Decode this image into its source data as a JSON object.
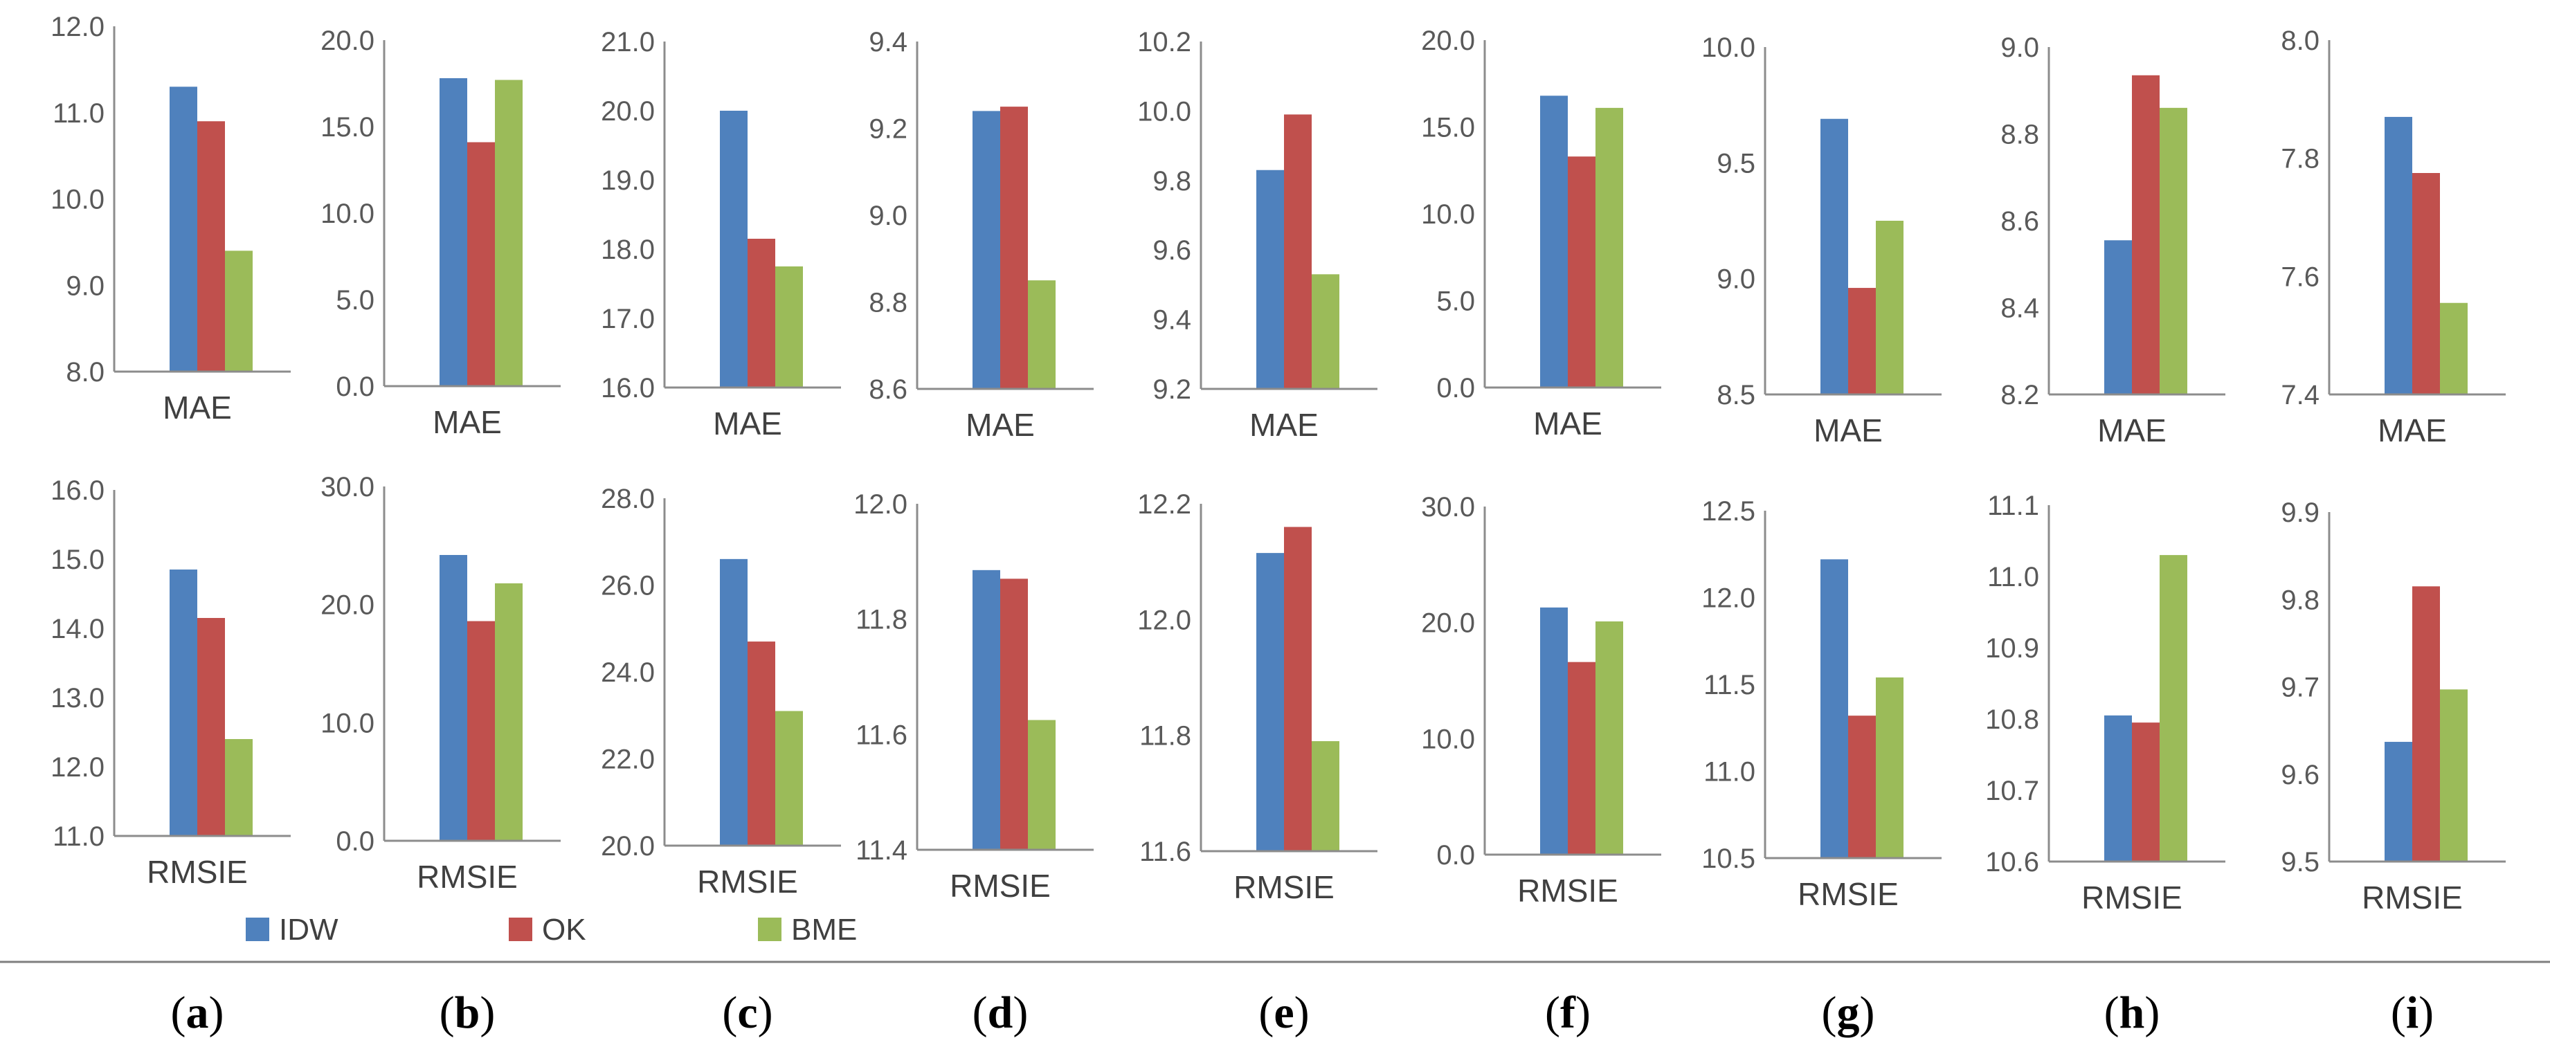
{
  "chart_data": {
    "type": "bar",
    "series_names": [
      "IDW",
      "OK",
      "BME"
    ],
    "colors": {
      "IDW": "#4f81bd",
      "OK": "#c0504d",
      "BME": "#9bbb59"
    },
    "panels": [
      {
        "label": "a",
        "mae": {
          "category": "MAE",
          "values": [
            11.3,
            10.9,
            9.4
          ],
          "ylim": [
            8.0,
            12.0
          ],
          "ticks": [
            "8.0",
            "9.0",
            "10.0",
            "11.0",
            "12.0"
          ]
        },
        "rmsie": {
          "category": "RMSIE",
          "values": [
            14.85,
            14.15,
            12.4
          ],
          "ylim": [
            11.0,
            16.0
          ],
          "ticks": [
            "11.0",
            "12.0",
            "13.0",
            "14.0",
            "15.0",
            "16.0"
          ]
        }
      },
      {
        "label": "b",
        "mae": {
          "category": "MAE",
          "values": [
            17.8,
            14.1,
            17.7
          ],
          "ylim": [
            0.0,
            20.0
          ],
          "ticks": [
            "0.0",
            "5.0",
            "10.0",
            "15.0",
            "20.0"
          ]
        },
        "rmsie": {
          "category": "RMSIE",
          "values": [
            24.2,
            18.6,
            21.8
          ],
          "ylim": [
            0.0,
            30.0
          ],
          "ticks": [
            "0.0",
            "10.0",
            "20.0",
            "30.0"
          ]
        }
      },
      {
        "label": "c",
        "mae": {
          "category": "MAE",
          "values": [
            20.0,
            18.15,
            17.75
          ],
          "ylim": [
            16.0,
            21.0
          ],
          "ticks": [
            "16.0",
            "17.0",
            "18.0",
            "19.0",
            "20.0",
            "21.0"
          ]
        },
        "rmsie": {
          "category": "RMSIE",
          "values": [
            26.6,
            24.7,
            23.1
          ],
          "ylim": [
            20.0,
            28.0
          ],
          "ticks": [
            "20.0",
            "22.0",
            "24.0",
            "26.0",
            "28.0"
          ]
        }
      },
      {
        "label": "d",
        "mae": {
          "category": "MAE",
          "values": [
            9.24,
            9.25,
            8.85
          ],
          "ylim": [
            8.6,
            9.4
          ],
          "ticks": [
            "8.6",
            "8.8",
            "9.0",
            "9.2",
            "9.4"
          ]
        },
        "rmsie": {
          "category": "RMSIE",
          "values": [
            11.885,
            11.87,
            11.625
          ],
          "ylim": [
            11.4,
            12.0
          ],
          "ticks": [
            "11.4",
            "11.6",
            "11.8",
            "12.0"
          ]
        }
      },
      {
        "label": "e",
        "mae": {
          "category": "MAE",
          "values": [
            9.83,
            9.99,
            9.53
          ],
          "ylim": [
            9.2,
            10.2
          ],
          "ticks": [
            "9.2",
            "9.4",
            "9.6",
            "9.8",
            "10.0",
            "10.2"
          ]
        },
        "rmsie": {
          "category": "RMSIE",
          "values": [
            12.115,
            12.16,
            11.79
          ],
          "ylim": [
            11.6,
            12.2
          ],
          "ticks": [
            "11.6",
            "11.8",
            "12.0",
            "12.2"
          ]
        }
      },
      {
        "label": "f",
        "mae": {
          "category": "MAE",
          "values": [
            16.8,
            13.3,
            16.1
          ],
          "ylim": [
            0.0,
            20.0
          ],
          "ticks": [
            "0.0",
            "5.0",
            "10.0",
            "15.0",
            "20.0"
          ]
        },
        "rmsie": {
          "category": "RMSIE",
          "values": [
            21.3,
            16.6,
            20.1
          ],
          "ylim": [
            0.0,
            30.0
          ],
          "ticks": [
            "0.0",
            "10.0",
            "20.0",
            "30.0"
          ]
        }
      },
      {
        "label": "g",
        "mae": {
          "category": "MAE",
          "values": [
            9.69,
            8.96,
            9.25
          ],
          "ylim": [
            8.5,
            10.0
          ],
          "ticks": [
            "8.5",
            "9.0",
            "9.5",
            "10.0"
          ]
        },
        "rmsie": {
          "category": "RMSIE",
          "values": [
            12.22,
            11.32,
            11.54
          ],
          "ylim": [
            10.5,
            12.5
          ],
          "ticks": [
            "10.5",
            "11.0",
            "11.5",
            "12.0",
            "12.5"
          ]
        }
      },
      {
        "label": "h",
        "mae": {
          "category": "MAE",
          "values": [
            8.555,
            8.935,
            8.86
          ],
          "ylim": [
            8.2,
            9.0
          ],
          "ticks": [
            "8.2",
            "8.4",
            "8.6",
            "8.8",
            "9.0"
          ]
        },
        "rmsie": {
          "category": "RMSIE",
          "values": [
            10.805,
            10.795,
            11.03
          ],
          "ylim": [
            10.6,
            11.1
          ],
          "ticks": [
            "10.6",
            "10.7",
            "10.8",
            "10.9",
            "11.0",
            "11.1"
          ]
        }
      },
      {
        "label": "i",
        "mae": {
          "category": "MAE",
          "values": [
            7.87,
            7.775,
            7.555
          ],
          "ylim": [
            7.4,
            8.0
          ],
          "ticks": [
            "7.4",
            "7.6",
            "7.8",
            "8.0"
          ]
        },
        "rmsie": {
          "category": "RMSIE",
          "values": [
            9.637,
            9.815,
            9.697
          ],
          "ylim": [
            9.5,
            9.9
          ],
          "ticks": [
            "9.5",
            "9.6",
            "9.7",
            "9.8",
            "9.9"
          ]
        }
      }
    ],
    "legend": [
      "IDW",
      "OK",
      "BME"
    ]
  }
}
